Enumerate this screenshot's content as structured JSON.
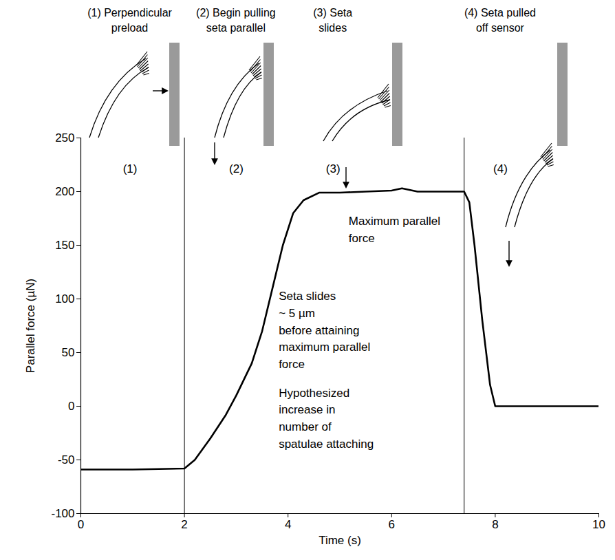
{
  "chart_data": {
    "type": "line",
    "x_label": "Time (s)",
    "y_label": "Parallel force (µN)",
    "color": "#000000",
    "x": [
      0,
      1,
      2,
      2.2,
      2.5,
      2.8,
      3,
      3.3,
      3.5,
      3.7,
      3.9,
      4.1,
      4.3,
      4.6,
      5,
      5.5,
      6,
      6.2,
      6.5,
      7,
      7.4,
      7.5,
      7.6,
      7.75,
      7.9,
      8,
      9,
      10
    ],
    "values": [
      -59,
      -59,
      -58,
      -50,
      -30,
      -8,
      10,
      40,
      70,
      110,
      150,
      180,
      192,
      199,
      199,
      200,
      201,
      203,
      200,
      200,
      200,
      190,
      150,
      80,
      20,
      0,
      0,
      0
    ],
    "xlim": [
      0,
      10
    ],
    "ylim": [
      -100,
      250
    ],
    "xticks": [
      0,
      2,
      4,
      6,
      8,
      10
    ],
    "yticks": [
      -100,
      -50,
      0,
      50,
      100,
      150,
      200,
      250
    ],
    "vertical_lines": [
      2,
      7.4
    ],
    "phases": [
      {
        "label": "(1)",
        "title": "(1) Perpendicular\npreload",
        "x": 0.95,
        "y": 221
      },
      {
        "label": "(2)",
        "title": "(2) Begin pulling\nseta parallel",
        "x": 3.0,
        "y": 221
      },
      {
        "label": "(3)",
        "title": "(3) Seta\nslides",
        "x": 4.87,
        "y": 221
      },
      {
        "label": "(4)",
        "title": "(4) Seta pulled\noff sensor",
        "x": 8.1,
        "y": 221
      }
    ],
    "annotations": [
      {
        "text": "Maximum parallel\nforce",
        "x": 5.17,
        "y": 180
      },
      {
        "text": "Seta slides\n~ 5 µm\nbefore attaining\nmaximum parallel\nforce",
        "x": 3.82,
        "y": 110
      },
      {
        "text": "Hypothesized\nincrease in\nnumber of\nspatulae attaching",
        "x": 3.82,
        "y": 20
      }
    ]
  }
}
